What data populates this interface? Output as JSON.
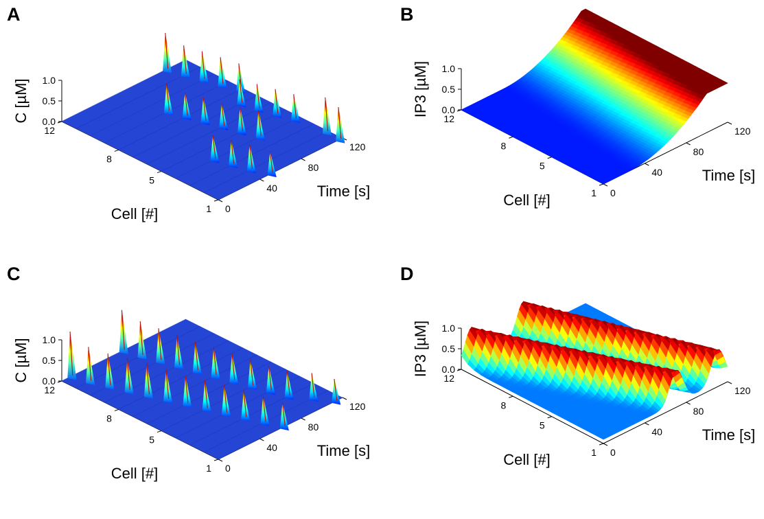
{
  "colors": {
    "base": "#2545d4",
    "axis": "#000000"
  },
  "chart_data": [
    {
      "panel": "A",
      "type": "surface",
      "quantity": "calcium",
      "xlabel": "Time [s]",
      "ylabel": "Cell [#]",
      "zlabel": "C [µM]",
      "xticks": [
        "0",
        "40",
        "80",
        "120"
      ],
      "yticks": [
        "1",
        "5",
        "8",
        "12"
      ],
      "zticks": [
        "0.0",
        "0.5",
        "1.0"
      ],
      "xlim": [
        0,
        120
      ],
      "ylim": [
        1,
        12
      ],
      "zlim": [
        0,
        1
      ],
      "peak_width_s": 2.5,
      "peaks": [
        {
          "cell": 12,
          "t": 100,
          "z": 0.9
        },
        {
          "cell": 11,
          "t": 104,
          "z": 0.72
        },
        {
          "cell": 10,
          "t": 108,
          "z": 0.7
        },
        {
          "cell": 9,
          "t": 112,
          "z": 0.68
        },
        {
          "cell": 8,
          "t": 116,
          "z": 0.65
        },
        {
          "cell": 1,
          "t": 116,
          "z": 0.8
        },
        {
          "cell": 2,
          "t": 117,
          "z": 0.85
        },
        {
          "cell": 7,
          "t": 103,
          "z": 0.6
        },
        {
          "cell": 6,
          "t": 106,
          "z": 0.62
        },
        {
          "cell": 5,
          "t": 110,
          "z": 0.62
        },
        {
          "cell": 4,
          "t": 114,
          "z": 0.62
        },
        {
          "cell": 9,
          "t": 60,
          "z": 0.7
        },
        {
          "cell": 8,
          "t": 64,
          "z": 0.6
        },
        {
          "cell": 7,
          "t": 68,
          "z": 0.6
        },
        {
          "cell": 6,
          "t": 72,
          "z": 0.58
        },
        {
          "cell": 5,
          "t": 76,
          "z": 0.6
        },
        {
          "cell": 4,
          "t": 80,
          "z": 0.65
        },
        {
          "cell": 4,
          "t": 36,
          "z": 0.6
        },
        {
          "cell": 3,
          "t": 40,
          "z": 0.6
        },
        {
          "cell": 2,
          "t": 44,
          "z": 0.62
        },
        {
          "cell": 1,
          "t": 50,
          "z": 0.55
        }
      ]
    },
    {
      "panel": "B",
      "type": "surface",
      "quantity": "IP3",
      "xlabel": "Time [s]",
      "ylabel": "Cell [#]",
      "zlabel": "IP3 [µM]",
      "xticks": [
        "0",
        "40",
        "80",
        "120"
      ],
      "yticks": [
        "1",
        "5",
        "8",
        "12"
      ],
      "zticks": [
        "0.0",
        "0.5",
        "1.0"
      ],
      "xlim": [
        0,
        120
      ],
      "ylim": [
        1,
        12
      ],
      "zlim": [
        0,
        1
      ]
    },
    {
      "panel": "C",
      "type": "surface",
      "quantity": "calcium",
      "xlabel": "Time [s]",
      "ylabel": "Cell [#]",
      "zlabel": "C [µM]",
      "xticks": [
        "0",
        "40",
        "80",
        "120"
      ],
      "yticks": [
        "1",
        "5",
        "8",
        "12"
      ],
      "zticks": [
        "0.0",
        "0.5",
        "1.0"
      ],
      "xlim": [
        0,
        120
      ],
      "ylim": [
        1,
        12
      ],
      "zlim": [
        0,
        1
      ],
      "peak_width_s": 2.5,
      "peaks": [
        {
          "cell": 12,
          "t": 8,
          "z": 1.1
        },
        {
          "cell": 11,
          "t": 12,
          "z": 0.85
        },
        {
          "cell": 10,
          "t": 17,
          "z": 0.8
        },
        {
          "cell": 9,
          "t": 22,
          "z": 0.8
        },
        {
          "cell": 8,
          "t": 27,
          "z": 0.8
        },
        {
          "cell": 7,
          "t": 32,
          "z": 0.75
        },
        {
          "cell": 6,
          "t": 37,
          "z": 0.7
        },
        {
          "cell": 5,
          "t": 42,
          "z": 0.7
        },
        {
          "cell": 4,
          "t": 47,
          "z": 0.7
        },
        {
          "cell": 3,
          "t": 52,
          "z": 0.68
        },
        {
          "cell": 2,
          "t": 57,
          "z": 0.65
        },
        {
          "cell": 1,
          "t": 62,
          "z": 0.6
        },
        {
          "cell": 12,
          "t": 58,
          "z": 1.0
        },
        {
          "cell": 11,
          "t": 62,
          "z": 0.85
        },
        {
          "cell": 10,
          "t": 66,
          "z": 0.8
        },
        {
          "cell": 9,
          "t": 70,
          "z": 0.75
        },
        {
          "cell": 8,
          "t": 74,
          "z": 0.72
        },
        {
          "cell": 7,
          "t": 78,
          "z": 0.72
        },
        {
          "cell": 6,
          "t": 82,
          "z": 0.68
        },
        {
          "cell": 5,
          "t": 86,
          "z": 0.65
        },
        {
          "cell": 4,
          "t": 90,
          "z": 0.62
        },
        {
          "cell": 3,
          "t": 94,
          "z": 0.62
        },
        {
          "cell": 2,
          "t": 104,
          "z": 0.62
        },
        {
          "cell": 1,
          "t": 112,
          "z": 0.55
        }
      ]
    },
    {
      "panel": "D",
      "type": "surface",
      "quantity": "IP3",
      "xlabel": "Time [s]",
      "ylabel": "Cell [#]",
      "zlabel": "IP3 [µM]",
      "xticks": [
        "0",
        "40",
        "80",
        "120"
      ],
      "yticks": [
        "1",
        "5",
        "8",
        "12"
      ],
      "zticks": [
        "0.0",
        "0.5",
        "1.0"
      ],
      "xlim": [
        0,
        120
      ],
      "ylim": [
        1,
        12
      ],
      "zlim": [
        0,
        1
      ]
    }
  ],
  "panels": {
    "a": {
      "letter": "A"
    },
    "b": {
      "letter": "B"
    },
    "c": {
      "letter": "C"
    },
    "d": {
      "letter": "D"
    }
  }
}
